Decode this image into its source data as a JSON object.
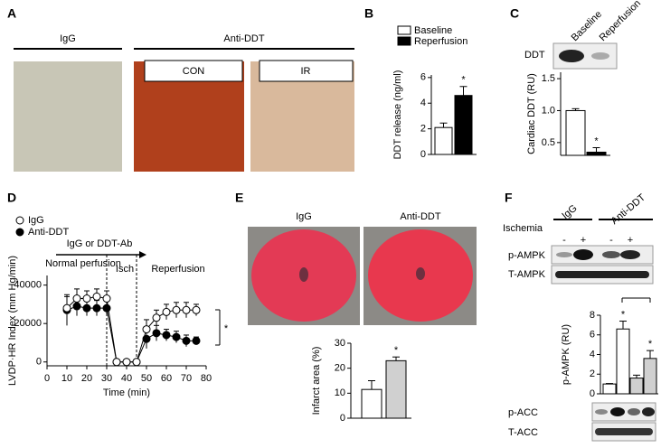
{
  "panels": {
    "labels": [
      "A",
      "B",
      "C",
      "D",
      "E",
      "F"
    ]
  },
  "panel_a": {
    "left": "IgG",
    "right": "Anti-DDT",
    "insets": [
      "CON",
      "IR"
    ]
  },
  "panel_c_blot": {
    "row": "DDT",
    "lanes": [
      "Baseline",
      "Reperfusion"
    ]
  },
  "panel_e_images": [
    "IgG",
    "Anti-DDT"
  ],
  "panel_f_blot": {
    "groups": [
      "IgG",
      "Anti-DDT"
    ],
    "condition": "Ischemia",
    "lanes": [
      "-",
      "+",
      "-",
      "+"
    ],
    "rows_top": [
      "p-AMPK",
      "T-AMPK"
    ],
    "rows_bottom": [
      "p-ACC",
      "T-ACC"
    ]
  },
  "chart_data": [
    {
      "type": "bar",
      "ylabel": "DDT release (ng/ml)",
      "series": [
        {
          "name": "Baseline",
          "color": "#ffffff",
          "values": [
            2.1
          ],
          "errors": [
            0.35
          ]
        },
        {
          "name": "Reperfusion",
          "color": "#000000",
          "values": [
            4.6
          ],
          "errors": [
            0.7
          ]
        }
      ],
      "ylim": [
        0,
        6.2
      ],
      "yticks": [
        0,
        2,
        4,
        6
      ],
      "annotations": [
        "*"
      ]
    },
    {
      "type": "bar",
      "ylabel": "Cardiac DDT (RU)",
      "values": [
        1.0,
        0.35
      ],
      "errors": [
        0.03,
        0.07
      ],
      "colors": [
        "#ffffff",
        "#000000"
      ],
      "ylim": [
        0.3,
        1.6
      ],
      "yticks": [
        0.5,
        {
          "value": 1,
          "label": "1.0"
        },
        1.5
      ],
      "annotations": [
        "*"
      ]
    },
    {
      "type": "line",
      "xlabel": "Time (min)",
      "ylabel": "LVDP·HR Index (mm Hg/min)",
      "x": [
        10,
        15,
        20,
        25,
        30,
        35,
        40,
        45,
        50,
        55,
        60,
        65,
        70,
        75
      ],
      "series": [
        {
          "name": "IgG",
          "color": "#ffffff",
          "values": [
            28000,
            33000,
            33000,
            34000,
            33000,
            0,
            0,
            0,
            17000,
            23000,
            26000,
            27000,
            27000,
            27000
          ],
          "errors": [
            6000,
            5000,
            4000,
            4000,
            4000,
            0,
            0,
            0,
            5000,
            4000,
            4000,
            4000,
            4000,
            3000
          ]
        },
        {
          "name": "Anti-DDT",
          "color": "#000000",
          "values": [
            27000,
            29000,
            28000,
            28000,
            28000,
            0,
            0,
            0,
            12000,
            15000,
            14000,
            13000,
            11000,
            11000
          ],
          "errors": [
            8000,
            5000,
            4000,
            4000,
            4000,
            0,
            0,
            0,
            5000,
            4000,
            3000,
            3000,
            3000,
            2000
          ]
        }
      ],
      "xlim": [
        0,
        80
      ],
      "xticks": [
        0,
        10,
        20,
        30,
        40,
        50,
        60,
        70,
        80
      ],
      "ylim": [
        -2000,
        45000
      ],
      "yticks": [
        0,
        20000,
        40000
      ],
      "annotations": [
        "Normal perfusion",
        "Isch",
        "Reperfusion",
        "IgG or DDT-Ab",
        "*"
      ]
    },
    {
      "type": "bar",
      "ylabel": "Infarct area (%)",
      "values": [
        11.5,
        23
      ],
      "errors": [
        3.5,
        1.5
      ],
      "colors": [
        "#ffffff",
        "#d0d0d0"
      ],
      "ylim": [
        0,
        30
      ],
      "yticks": [
        0,
        10,
        20,
        30
      ],
      "annotations": [
        "*"
      ]
    },
    {
      "type": "bar",
      "ylabel": "p-AMPK (RU)",
      "values": [
        1,
        6.6,
        1.6,
        3.6
      ],
      "errors": [
        0.05,
        0.8,
        0.3,
        0.8
      ],
      "colors": [
        "#ffffff",
        "#ffffff",
        "#d0d0d0",
        "#d0d0d0"
      ],
      "ylim": [
        0,
        8
      ],
      "yticks": [
        0,
        2,
        4,
        6,
        8
      ],
      "annotations": [
        "*",
        "*"
      ]
    }
  ]
}
